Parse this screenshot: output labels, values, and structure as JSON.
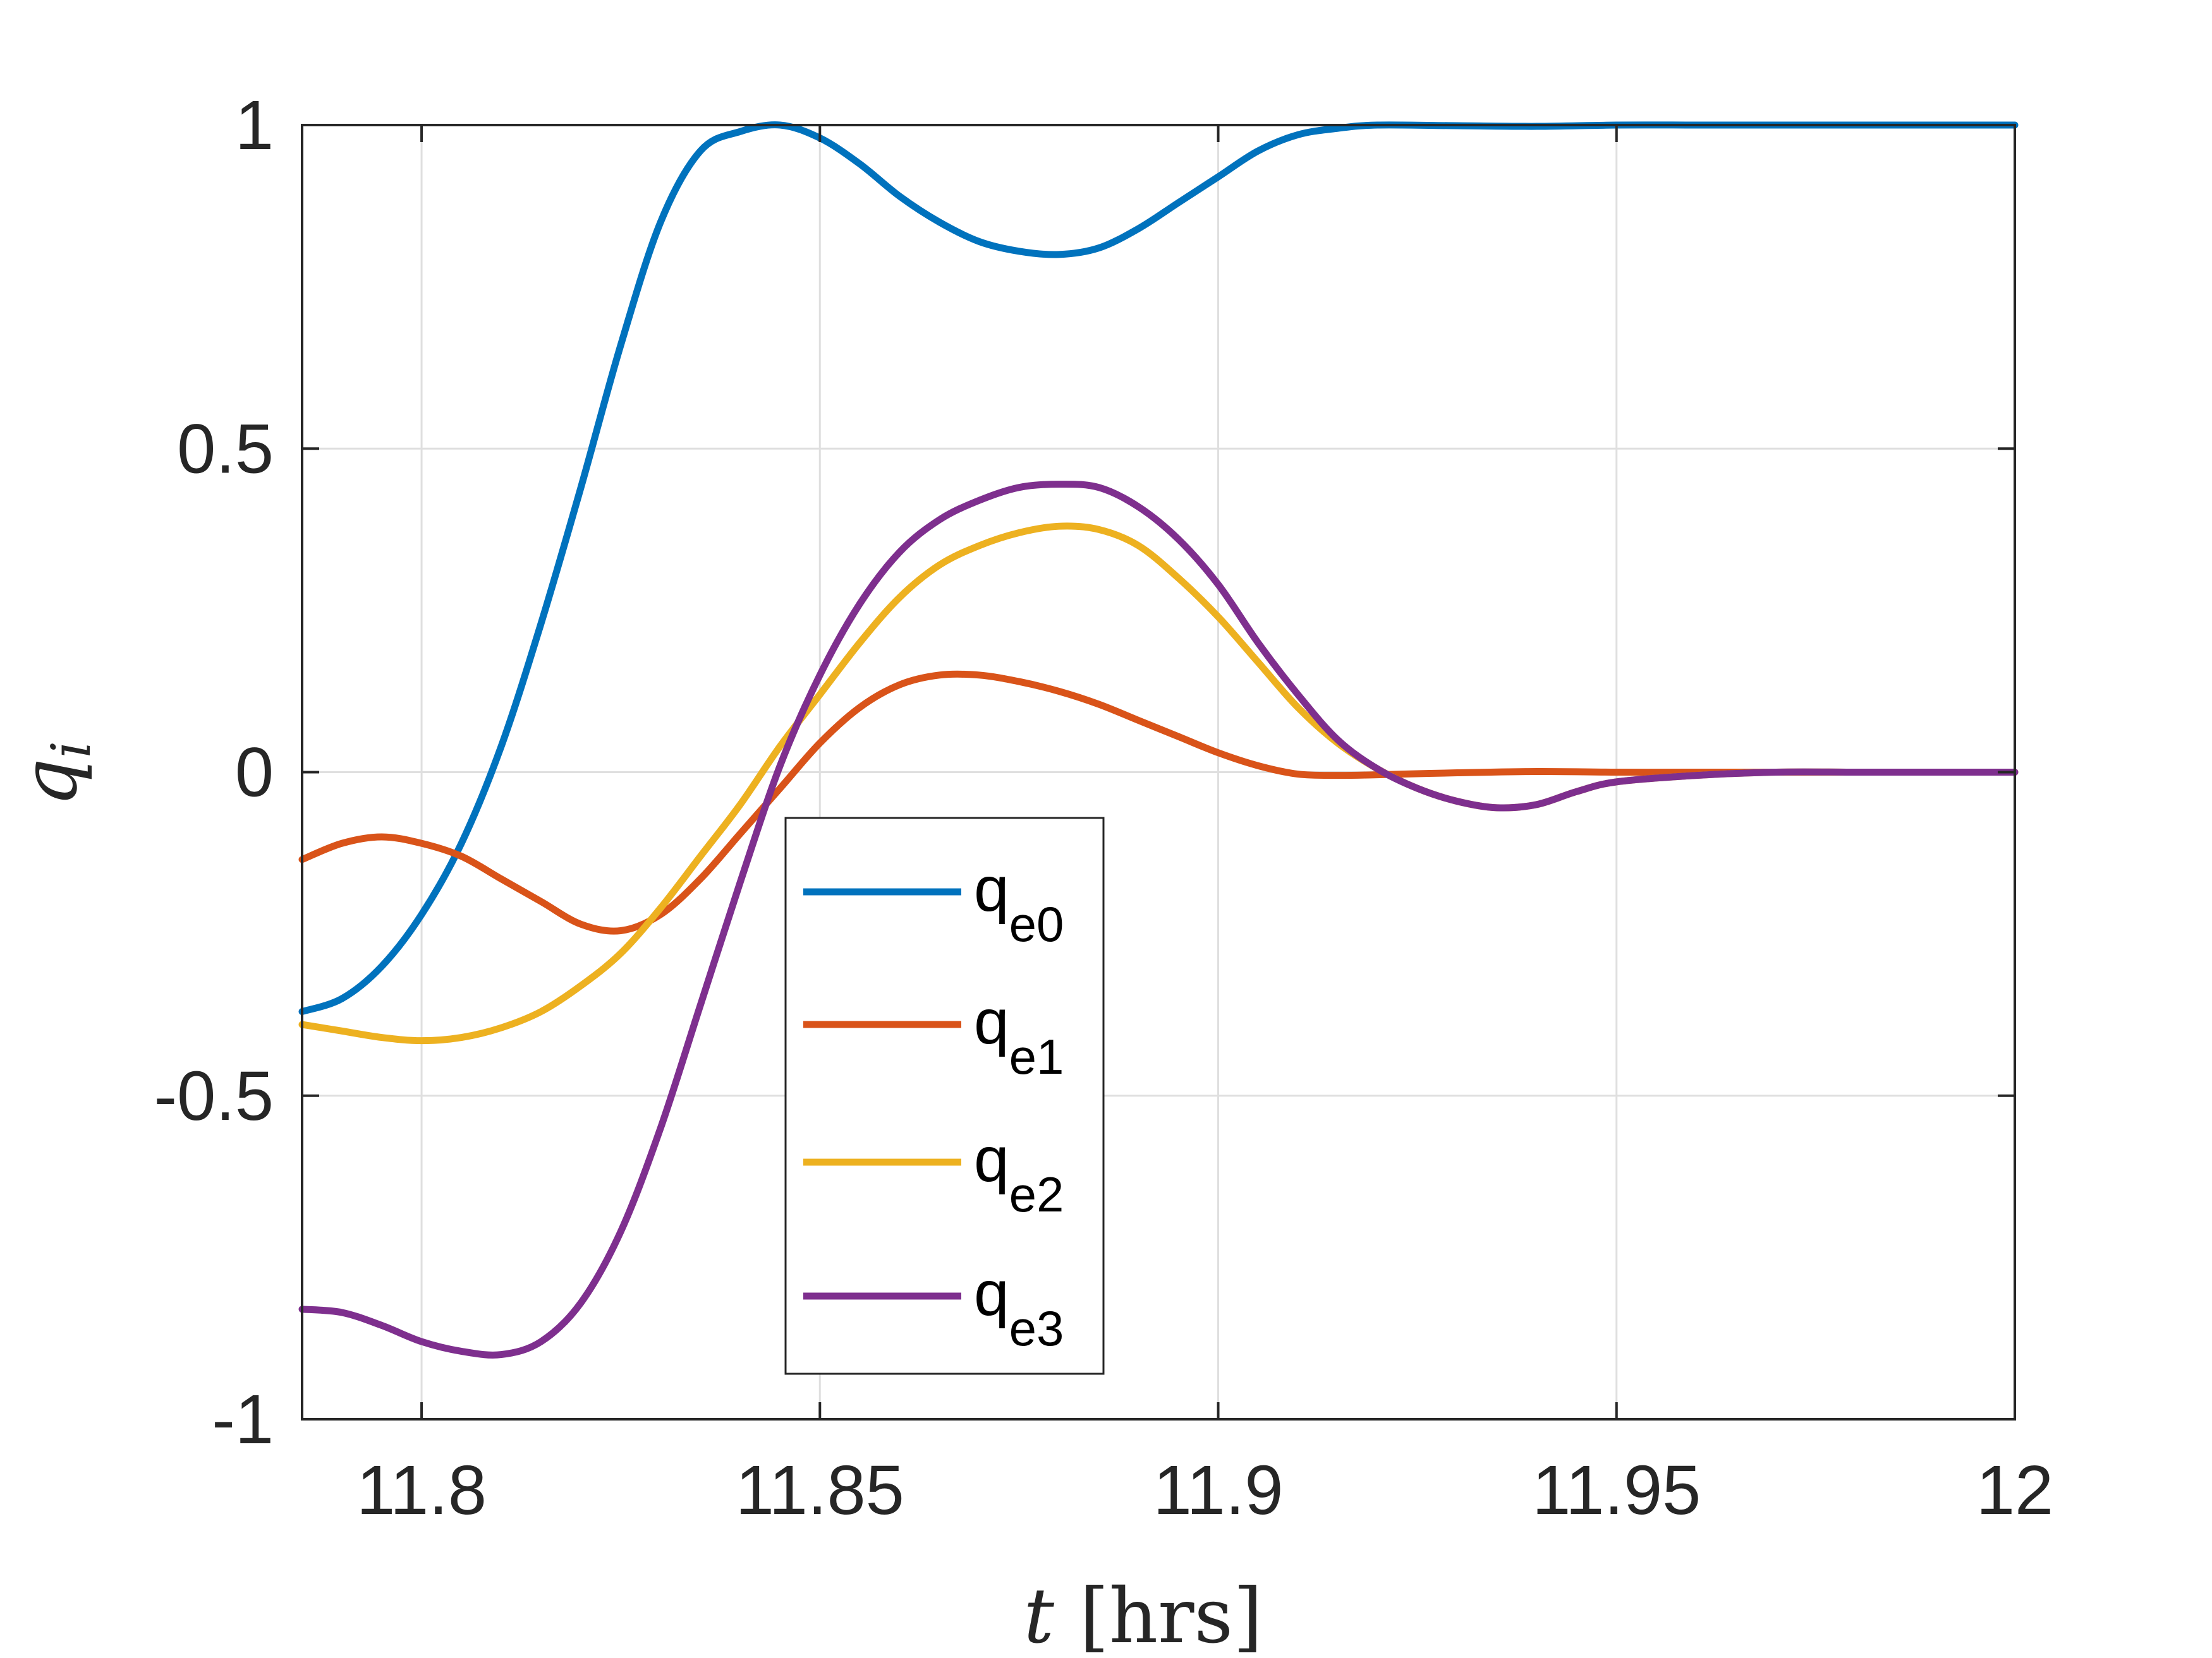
{
  "chart_data": {
    "type": "line",
    "xlabel": "t [hrs]",
    "xlabel_var": "t",
    "xlabel_unit": "[hrs]",
    "ylabel": "q_i",
    "ylabel_var": "q",
    "ylabel_sub": "i",
    "xlim": [
      11.785,
      12
    ],
    "ylim": [
      -1,
      1
    ],
    "xticks": [
      11.8,
      11.85,
      11.9,
      11.95,
      12
    ],
    "xtick_labels": [
      "11.8",
      "11.85",
      "11.9",
      "11.95",
      "12"
    ],
    "yticks": [
      -1,
      -0.5,
      0,
      0.5,
      1
    ],
    "ytick_labels": [
      "-1",
      "-0.5",
      "0",
      "0.5",
      "1"
    ],
    "grid": true,
    "legend_position": "center",
    "series": [
      {
        "name": "q_e0",
        "label_main": "q",
        "label_sub": "e0",
        "color": "#0072BD",
        "x": [
          11.785,
          11.79,
          11.795,
          11.8,
          11.805,
          11.81,
          11.815,
          11.82,
          11.825,
          11.83,
          11.835,
          11.84,
          11.845,
          11.85,
          11.855,
          11.86,
          11.865,
          11.87,
          11.875,
          11.88,
          11.885,
          11.89,
          11.895,
          11.9,
          11.905,
          11.91,
          11.915,
          11.92,
          11.93,
          11.94,
          11.95,
          11.96,
          11.97,
          11.98,
          11.99,
          12.0
        ],
        "y": [
          -0.37,
          -0.35,
          -0.3,
          -0.22,
          -0.11,
          0.04,
          0.23,
          0.44,
          0.66,
          0.85,
          0.96,
          0.99,
          1.0,
          0.98,
          0.94,
          0.89,
          0.85,
          0.82,
          0.805,
          0.8,
          0.81,
          0.84,
          0.88,
          0.92,
          0.96,
          0.985,
          0.995,
          1.0,
          0.999,
          0.998,
          1.0,
          1.0,
          1.0,
          1.0,
          1.0,
          1.0
        ]
      },
      {
        "name": "q_e1",
        "label_main": "q",
        "label_sub": "e1",
        "color": "#D95319",
        "x": [
          11.785,
          11.79,
          11.795,
          11.8,
          11.805,
          11.81,
          11.815,
          11.82,
          11.825,
          11.83,
          11.835,
          11.84,
          11.845,
          11.85,
          11.855,
          11.86,
          11.865,
          11.87,
          11.875,
          11.88,
          11.885,
          11.89,
          11.895,
          11.9,
          11.905,
          11.91,
          11.915,
          11.92,
          11.93,
          11.94,
          11.95,
          11.96,
          11.97,
          11.98,
          11.99,
          12.0
        ],
        "y": [
          -0.135,
          -0.11,
          -0.1,
          -0.11,
          -0.13,
          -0.165,
          -0.2,
          -0.235,
          -0.245,
          -0.22,
          -0.165,
          -0.095,
          -0.025,
          0.045,
          0.1,
          0.135,
          0.15,
          0.15,
          0.14,
          0.125,
          0.105,
          0.08,
          0.055,
          0.03,
          0.01,
          -0.003,
          -0.005,
          -0.004,
          -0.001,
          0.001,
          0.0,
          0.0,
          0.0,
          0.0,
          0.0,
          0.0
        ]
      },
      {
        "name": "q_e2",
        "label_main": "q",
        "label_sub": "e2",
        "color": "#EDB120",
        "x": [
          11.785,
          11.79,
          11.795,
          11.8,
          11.805,
          11.81,
          11.815,
          11.82,
          11.825,
          11.83,
          11.835,
          11.84,
          11.845,
          11.85,
          11.855,
          11.86,
          11.865,
          11.87,
          11.875,
          11.88,
          11.885,
          11.89,
          11.895,
          11.9,
          11.905,
          11.91,
          11.915,
          11.92,
          11.925,
          11.93,
          11.935,
          11.94,
          11.945,
          11.95,
          11.96,
          11.97,
          11.98,
          11.99,
          12.0
        ],
        "y": [
          -0.39,
          -0.4,
          -0.41,
          -0.415,
          -0.41,
          -0.395,
          -0.37,
          -0.33,
          -0.28,
          -0.21,
          -0.13,
          -0.05,
          0.04,
          0.12,
          0.2,
          0.27,
          0.32,
          0.35,
          0.37,
          0.38,
          0.375,
          0.35,
          0.3,
          0.24,
          0.17,
          0.1,
          0.045,
          0.005,
          -0.025,
          -0.045,
          -0.055,
          -0.05,
          -0.03,
          -0.015,
          -0.005,
          0.0,
          0.0,
          0.0,
          0.0
        ]
      },
      {
        "name": "q_e3",
        "label_main": "q",
        "label_sub": "e3",
        "color": "#7E2F8E",
        "x": [
          11.785,
          11.79,
          11.795,
          11.8,
          11.805,
          11.81,
          11.815,
          11.82,
          11.825,
          11.83,
          11.835,
          11.84,
          11.845,
          11.85,
          11.855,
          11.86,
          11.865,
          11.87,
          11.875,
          11.88,
          11.885,
          11.89,
          11.895,
          11.9,
          11.905,
          11.91,
          11.915,
          11.92,
          11.925,
          11.93,
          11.935,
          11.94,
          11.945,
          11.95,
          11.96,
          11.97,
          11.98,
          11.99,
          12.0
        ],
        "y": [
          -0.83,
          -0.835,
          -0.855,
          -0.88,
          -0.895,
          -0.9,
          -0.88,
          -0.82,
          -0.71,
          -0.55,
          -0.36,
          -0.17,
          0.01,
          0.15,
          0.26,
          0.34,
          0.39,
          0.42,
          0.44,
          0.445,
          0.44,
          0.41,
          0.36,
          0.29,
          0.2,
          0.12,
          0.05,
          0.005,
          -0.025,
          -0.045,
          -0.055,
          -0.05,
          -0.03,
          -0.015,
          -0.005,
          0.0,
          0.0,
          0.0,
          0.0
        ]
      }
    ]
  }
}
